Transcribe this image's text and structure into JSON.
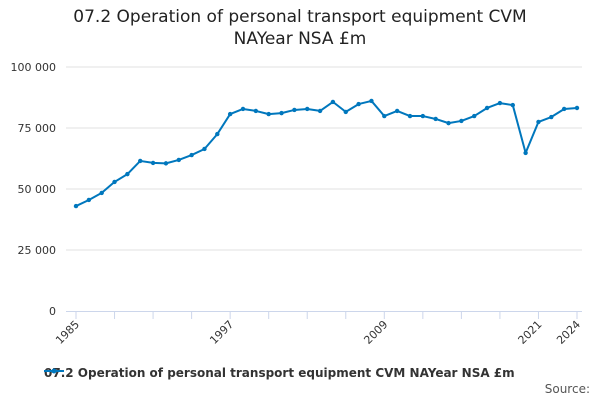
{
  "chart_data": {
    "type": "line",
    "title": "07.2 Operation of personal transport equipment CVM NAYear NSA £m",
    "title_line1": "07.2 Operation of personal transport equipment CVM",
    "title_line2": "NAYear NSA £m",
    "xlabel": "",
    "ylabel": "",
    "ylim": [
      0,
      100000
    ],
    "y_ticks": [
      0,
      25000,
      50000,
      75000,
      100000
    ],
    "y_tick_labels": [
      "0",
      "25 000",
      "50 000",
      "75 000",
      "100 000"
    ],
    "x_tick_labels": [
      "1985",
      "1997",
      "2009",
      "2021",
      "2024"
    ],
    "grid": true,
    "legend_position": "bottom-left",
    "color": "#0077bd",
    "series": [
      {
        "name": "07.2 Operation of personal transport equipment CVM NAYear NSA £m",
        "x": [
          1985,
          1986,
          1987,
          1988,
          1989,
          1990,
          1991,
          1992,
          1993,
          1994,
          1995,
          1996,
          1997,
          1998,
          1999,
          2000,
          2001,
          2002,
          2003,
          2004,
          2005,
          2006,
          2007,
          2008,
          2009,
          2010,
          2011,
          2012,
          2013,
          2014,
          2015,
          2016,
          2017,
          2018,
          2019,
          2020,
          2021,
          2022,
          2023,
          2024
        ],
        "values": [
          43000,
          45500,
          48400,
          52900,
          56100,
          61500,
          60700,
          60500,
          61900,
          63900,
          66400,
          72500,
          80700,
          82800,
          82000,
          80700,
          81100,
          82400,
          82800,
          82000,
          85700,
          81600,
          84800,
          86100,
          79900,
          82000,
          79900,
          79900,
          78700,
          77000,
          77900,
          79900,
          83200,
          85200,
          84400,
          64800,
          77500,
          79500,
          82800,
          83200
        ]
      }
    ]
  },
  "source_label": "Source:"
}
